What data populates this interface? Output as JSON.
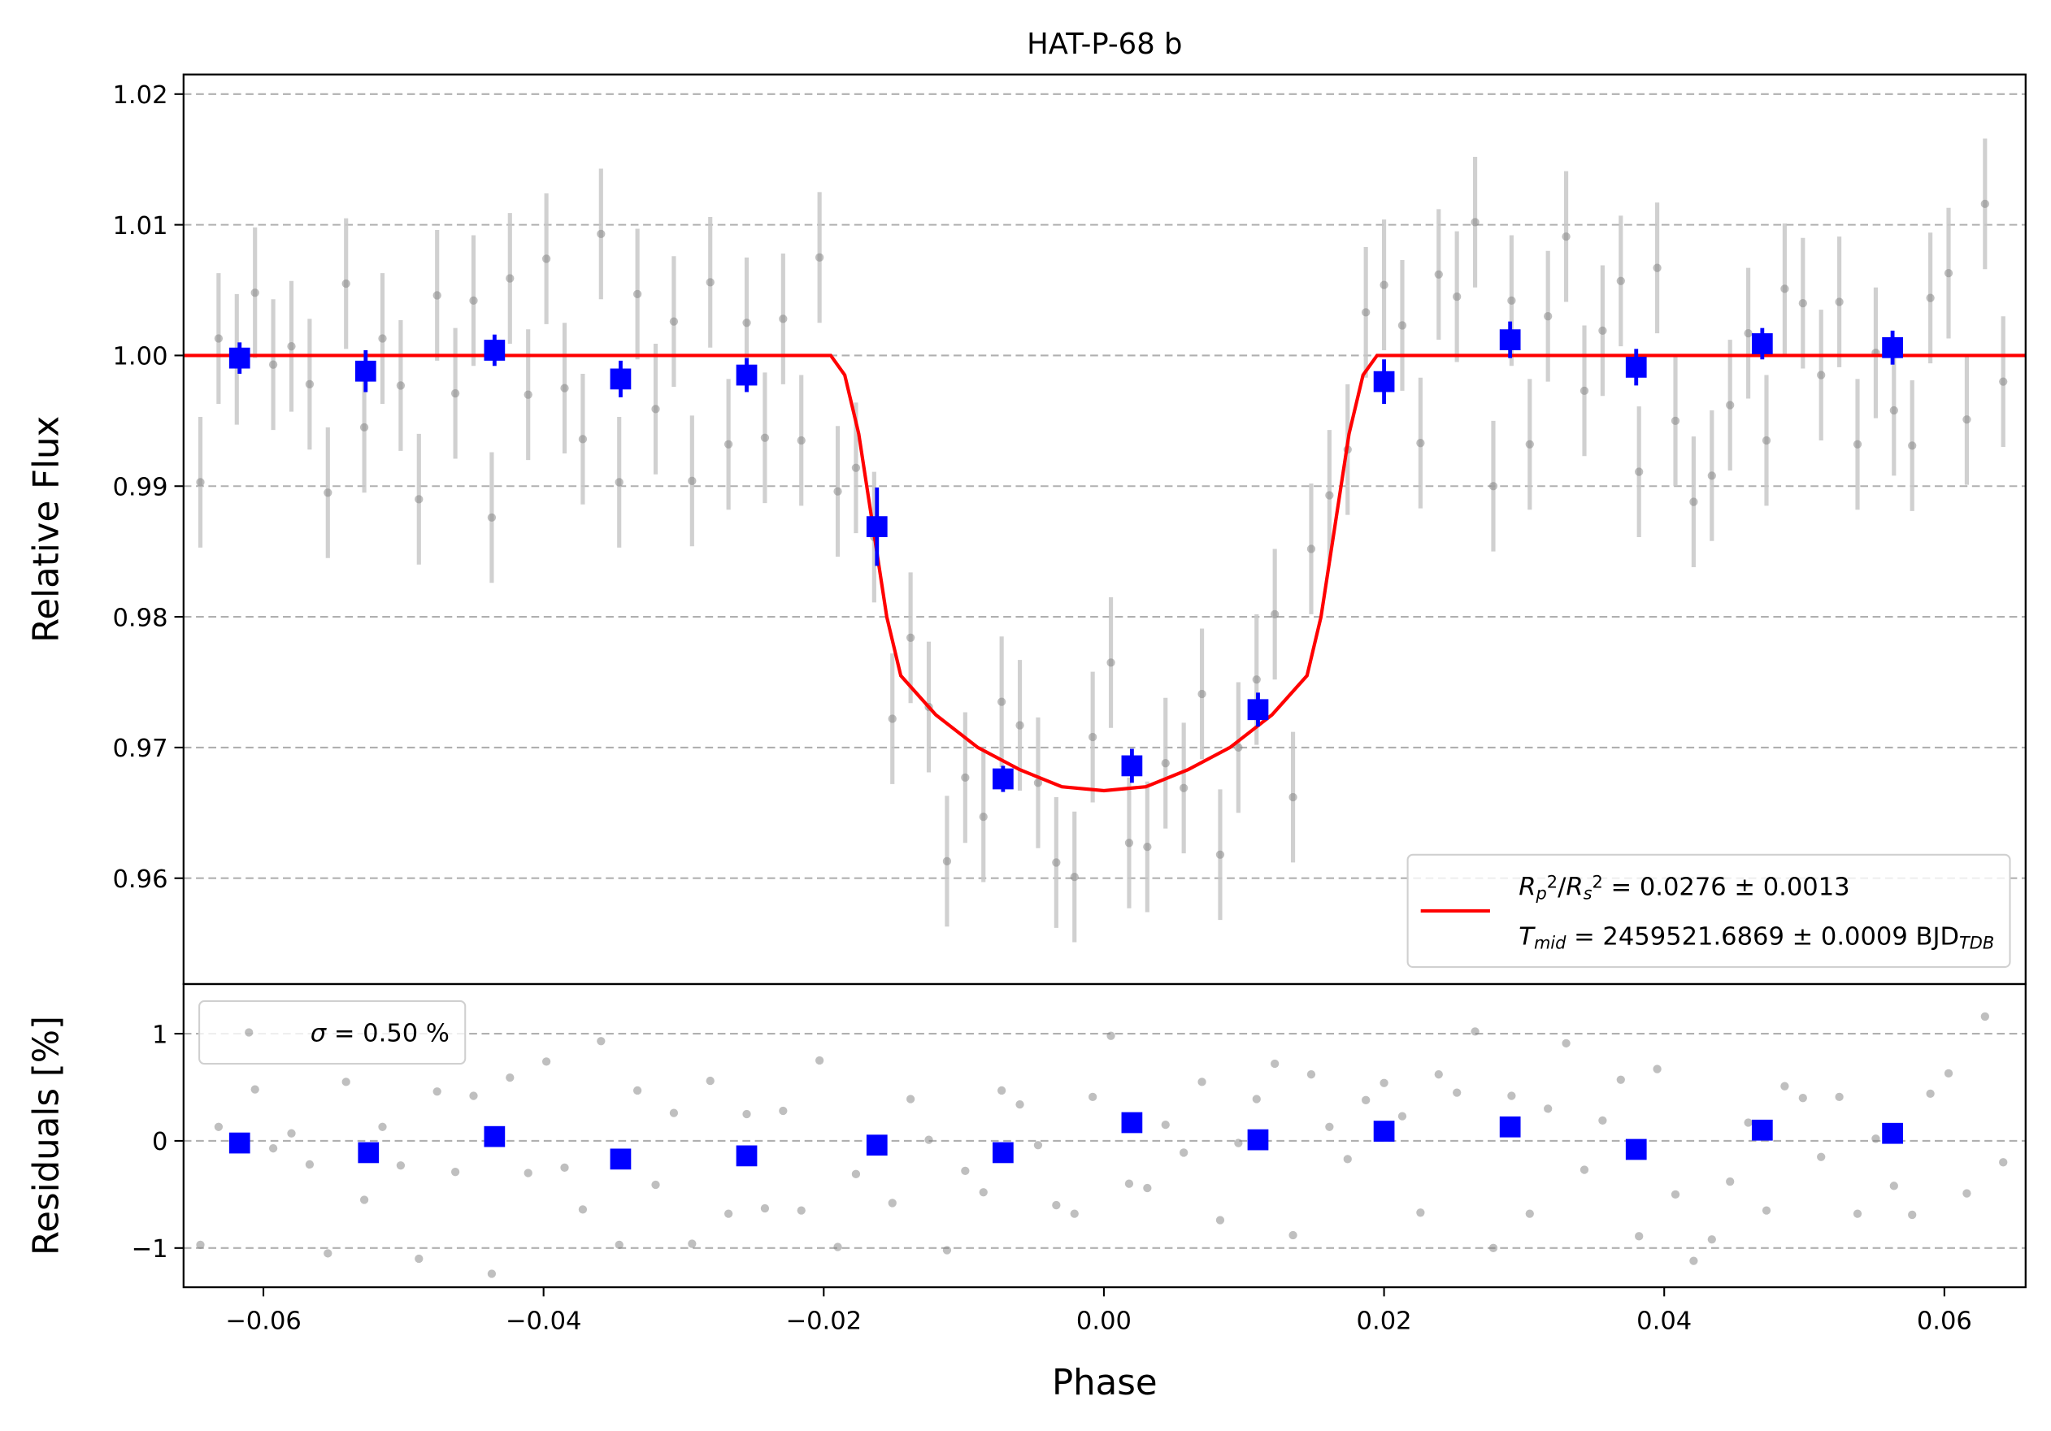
{
  "chart_data": [
    {
      "type": "scatter",
      "title": "HAT-P-68 b",
      "ylabel": "Relative Flux",
      "xlim": [
        -0.0657,
        0.0658
      ],
      "ylim": [
        0.9519,
        1.0215
      ],
      "yticks": [
        0.96,
        0.97,
        0.98,
        0.99,
        {
          "value": 1,
          "label": "1.00"
        },
        1.01,
        1.02
      ],
      "grid": true,
      "legend": "lower right",
      "series": [
        {
          "kind": "errorbar",
          "marker": "circle",
          "color": "#808080",
          "alpha": 0.5,
          "error_color": "#c8c8c8",
          "error": 0.005,
          "x": [
            -0.0645,
            -0.0632,
            -0.0619,
            -0.0606,
            -0.0593,
            -0.058,
            -0.0567,
            -0.0554,
            -0.0541,
            -0.0528,
            -0.0515,
            -0.0502,
            -0.0489,
            -0.0476,
            -0.0463,
            -0.045,
            -0.0437,
            -0.0424,
            -0.0411,
            -0.0398,
            -0.0385,
            -0.0372,
            -0.0359,
            -0.0346,
            -0.0333,
            -0.032,
            -0.0307,
            -0.0294,
            -0.0281,
            -0.0268,
            -0.0255,
            -0.0242,
            -0.0229,
            -0.0216,
            -0.0203,
            -0.019,
            -0.0177,
            -0.0164,
            -0.0151,
            -0.0138,
            -0.0125,
            -0.0112,
            -0.0099,
            -0.0086,
            -0.0073,
            -0.006,
            -0.0047,
            -0.0034,
            -0.0021,
            -0.0008,
            0.0005,
            0.0018,
            0.0031,
            0.0044,
            0.0057,
            0.007,
            0.0083,
            0.0096,
            0.0109,
            0.0122,
            0.0135,
            0.0148,
            0.0161,
            0.0174,
            0.0187,
            0.02,
            0.0213,
            0.0226,
            0.0239,
            0.0252,
            0.0265,
            0.0278,
            0.0291,
            0.0304,
            0.0317,
            0.033,
            0.0343,
            0.0356,
            0.0369,
            0.0382,
            0.0395,
            0.0408,
            0.0421,
            0.0434,
            0.0447,
            0.046,
            0.0473,
            0.0486,
            0.0499,
            0.0512,
            0.0525,
            0.0538,
            0.0551,
            0.0564,
            0.0577,
            0.059,
            0.0603,
            0.0616,
            0.0629,
            0.0642
          ],
          "values": [
            0.9903,
            1.0013,
            0.9997,
            1.0048,
            0.9993,
            1.0007,
            0.9978,
            0.9895,
            1.0055,
            0.9945,
            1.0013,
            0.9977,
            0.989,
            1.0046,
            0.9971,
            1.0042,
            0.9876,
            1.0059,
            0.997,
            1.0074,
            0.9975,
            0.9936,
            1.0093,
            0.9903,
            1.0047,
            0.9959,
            1.0026,
            0.9904,
            1.0056,
            0.9932,
            1.0025,
            0.9937,
            1.0028,
            0.9935,
            1.0075,
            0.9896,
            0.9914,
            0.9861,
            0.9722,
            0.9784,
            0.9731,
            0.9613,
            0.9677,
            0.9647,
            0.9735,
            0.9717,
            0.9673,
            0.9612,
            0.9601,
            0.9708,
            0.9765,
            0.9627,
            0.9624,
            0.9688,
            0.9669,
            0.9741,
            0.9618,
            0.97,
            0.9752,
            0.9802,
            0.9662,
            0.9852,
            0.9893,
            0.9928,
            1.0033,
            1.0054,
            1.0023,
            0.9933,
            1.0062,
            1.0045,
            1.0102,
            0.99,
            1.0042,
            0.9932,
            1.003,
            1.0091,
            0.9973,
            1.0019,
            1.0057,
            0.9911,
            1.0067,
            0.995,
            0.9888,
            0.9908,
            0.9962,
            1.0017,
            0.9935,
            1.0051,
            1.004,
            0.9985,
            1.0041,
            0.9932,
            1.0002,
            0.9958,
            0.9931,
            1.0044,
            1.0063,
            0.9951,
            1.0116,
            0.998
          ]
        },
        {
          "kind": "line",
          "color": "#ff0000",
          "name": [
            [
              {
                "text": "R",
                "style": "italic"
              },
              {
                "text": "p",
                "style": "sub"
              },
              {
                "text": "2",
                "style": "sup"
              },
              {
                "text": "/"
              },
              {
                "text": "R",
                "style": "italic"
              },
              {
                "text": "s",
                "style": "sub"
              },
              {
                "text": "2",
                "style": "sup"
              },
              {
                "text": " = 0.0276 ± 0.0013"
              }
            ],
            [
              {
                "text": "T",
                "style": "italic"
              },
              {
                "text": "mid",
                "style": "sub"
              },
              {
                "text": " = 2459521.6869 ± 0.0009 BJD"
              },
              {
                "text": "TDB",
                "style": "sub"
              }
            ]
          ],
          "x": [
            -0.0657,
            -0.0195,
            -0.0185,
            -0.0175,
            -0.0165,
            -0.0155,
            -0.0145,
            -0.012,
            -0.009,
            -0.006,
            -0.003,
            0,
            0.003,
            0.006,
            0.009,
            0.012,
            0.0145,
            0.0155,
            0.0165,
            0.0175,
            0.0185,
            0.0195,
            0.0658
          ],
          "values": [
            1,
            1,
            0.9985,
            0.994,
            0.987,
            0.98,
            0.9755,
            0.9725,
            0.97,
            0.9683,
            0.967,
            0.9667,
            0.967,
            0.9683,
            0.97,
            0.9725,
            0.9755,
            0.98,
            0.987,
            0.994,
            0.9985,
            1,
            1
          ]
        },
        {
          "kind": "errorbar",
          "marker": "square",
          "color": "#0000ff",
          "alpha": 1,
          "error_color": "#0000ff",
          "x": [
            -0.0617,
            -0.0527,
            -0.0435,
            -0.0345,
            -0.0255,
            -0.0162,
            -0.0072,
            0.002,
            0.011,
            0.02,
            0.029,
            0.038,
            0.047,
            0.0563
          ],
          "values": [
            0.9998,
            0.9988,
            1.0004,
            0.9982,
            0.9985,
            0.9869,
            0.9676,
            0.9686,
            0.9729,
            0.998,
            1.0012,
            0.9991,
            1.0009,
            1.0006
          ],
          "errors": [
            0.0012,
            0.0016,
            0.0012,
            0.0014,
            0.0013,
            0.003,
            0.001,
            0.0013,
            0.0013,
            0.0017,
            0.0014,
            0.0014,
            0.0012,
            0.0013
          ]
        }
      ]
    },
    {
      "type": "scatter",
      "ylabel": "Residuals [%]",
      "xlabel": "Phase",
      "xlim": [
        -0.0657,
        0.0658
      ],
      "ylim": [
        -1.366,
        1.463
      ],
      "xticks": [
        {
          "value": -0.06,
          "label": "−0.06"
        },
        {
          "value": -0.04,
          "label": "−0.04"
        },
        {
          "value": -0.02,
          "label": "−0.02"
        },
        {
          "value": 0,
          "label": "0.00"
        },
        0.02,
        0.04,
        0.06
      ],
      "yticks": [
        {
          "value": -1,
          "label": "−1"
        },
        0,
        1
      ],
      "grid": true,
      "legend": "upper left",
      "series": [
        {
          "kind": "errorbar",
          "marker": "circle",
          "color": "#808080",
          "alpha": 0.5,
          "name": [
            [
              {
                "text": "σ",
                "style": "italic"
              },
              {
                "text": " = 0.50 %"
              }
            ]
          ],
          "x": [
            -0.0645,
            -0.0632,
            -0.0619,
            -0.0606,
            -0.0593,
            -0.058,
            -0.0567,
            -0.0554,
            -0.0541,
            -0.0528,
            -0.0515,
            -0.0502,
            -0.0489,
            -0.0476,
            -0.0463,
            -0.045,
            -0.0437,
            -0.0424,
            -0.0411,
            -0.0398,
            -0.0385,
            -0.0372,
            -0.0359,
            -0.0346,
            -0.0333,
            -0.032,
            -0.0307,
            -0.0294,
            -0.0281,
            -0.0268,
            -0.0255,
            -0.0242,
            -0.0229,
            -0.0216,
            -0.0203,
            -0.019,
            -0.0177,
            -0.0164,
            -0.0151,
            -0.0138,
            -0.0125,
            -0.0112,
            -0.0099,
            -0.0086,
            -0.0073,
            -0.006,
            -0.0047,
            -0.0034,
            -0.0021,
            -0.0008,
            0.0005,
            0.0018,
            0.0031,
            0.0044,
            0.0057,
            0.007,
            0.0083,
            0.0096,
            0.0109,
            0.0122,
            0.0135,
            0.0148,
            0.0161,
            0.0174,
            0.0187,
            0.02,
            0.0213,
            0.0226,
            0.0239,
            0.0252,
            0.0265,
            0.0278,
            0.0291,
            0.0304,
            0.0317,
            0.033,
            0.0343,
            0.0356,
            0.0369,
            0.0382,
            0.0395,
            0.0408,
            0.0421,
            0.0434,
            0.0447,
            0.046,
            0.0473,
            0.0486,
            0.0499,
            0.0512,
            0.0525,
            0.0538,
            0.0551,
            0.0564,
            0.0577,
            0.059,
            0.0603,
            0.0616,
            0.0629,
            0.0642
          ],
          "values": [
            -0.97,
            0.13,
            -0.03,
            0.48,
            -0.07,
            0.07,
            -0.22,
            -1.05,
            0.55,
            -0.55,
            0.13,
            -0.23,
            -1.1,
            0.46,
            -0.29,
            0.42,
            -1.24,
            0.59,
            -0.3,
            0.74,
            -0.25,
            -0.64,
            0.93,
            -0.97,
            0.47,
            -0.41,
            0.26,
            -0.96,
            0.56,
            -0.68,
            0.25,
            -0.63,
            0.28,
            -0.65,
            0.75,
            -0.99,
            -0.31,
            0,
            -0.58,
            0.39,
            0.01,
            -1.02,
            -0.28,
            -0.48,
            0.47,
            0.34,
            -0.04,
            -0.6,
            -0.68,
            0.41,
            0.98,
            -0.4,
            -0.44,
            0.15,
            -0.11,
            0.55,
            -0.74,
            -0.02,
            0.39,
            0.72,
            -0.88,
            0.62,
            0.13,
            -0.17,
            0.38,
            0.54,
            0.23,
            -0.67,
            0.62,
            0.45,
            1.02,
            -1,
            0.42,
            -0.68,
            0.3,
            0.91,
            -0.27,
            0.19,
            0.57,
            -0.89,
            0.67,
            -0.5,
            -1.12,
            -0.92,
            -0.38,
            0.17,
            -0.65,
            0.51,
            0.4,
            -0.15,
            0.41,
            -0.68,
            0.02,
            -0.42,
            -0.69,
            0.44,
            0.63,
            -0.49,
            1.16,
            -0.2
          ]
        },
        {
          "kind": "errorbar",
          "marker": "square",
          "color": "#0000ff",
          "alpha": 1,
          "x": [
            -0.0617,
            -0.0525,
            -0.0435,
            -0.0345,
            -0.0255,
            -0.0162,
            -0.0072,
            0.002,
            0.011,
            0.02,
            0.029,
            0.038,
            0.047,
            0.0563
          ],
          "values": [
            -0.02,
            -0.11,
            0.04,
            -0.17,
            -0.14,
            -0.04,
            -0.11,
            0.17,
            0.01,
            0.09,
            0.13,
            -0.08,
            0.1,
            0.07
          ]
        }
      ]
    }
  ]
}
